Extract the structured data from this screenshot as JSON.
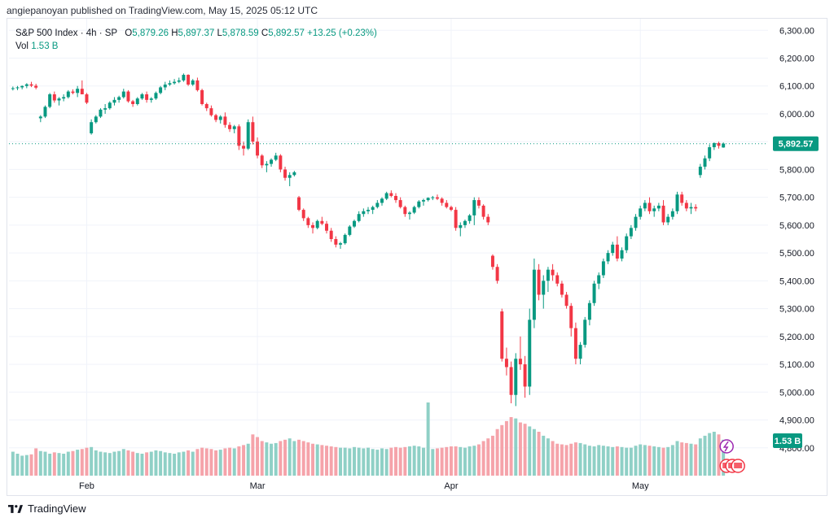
{
  "header": {
    "published_text": "angiepanoyan published on TradingView.com, May 15, 2025 05:12 UTC"
  },
  "legend": {
    "symbol": "S&P 500 Index · 4h · SP",
    "open_label": "O",
    "open": "5,879.26",
    "high_label": "H",
    "high": "5,897.37",
    "low_label": "L",
    "low": "5,878.59",
    "close_label": "C",
    "close": "5,892.57",
    "change": "+13.25 (+0.23%)",
    "vol_label": "Vol",
    "vol": "1.53 B"
  },
  "footer": {
    "brand": "TradingView"
  },
  "colors": {
    "up": "#089981",
    "down": "#f23645",
    "vol_up": "#8fd0c6",
    "vol_down": "#f5a3aa",
    "grid": "#f0f3fa",
    "axis_text": "#131722",
    "last_price_bg": "#089981"
  },
  "chart_data": {
    "type": "candlestick",
    "title": "S&P 500 Index · 4h · SP",
    "ylim": [
      4700,
      6330
    ],
    "yticks": [
      "4,800.00",
      "4,900.00",
      "5,000.00",
      "5,100.00",
      "5,200.00",
      "5,300.00",
      "5,400.00",
      "5,500.00",
      "5,600.00",
      "5,700.00",
      "5,800.00",
      "5,900.00",
      "6,000.00",
      "6,100.00",
      "6,200.00",
      "6,300.00"
    ],
    "ytick_values": [
      4800,
      4900,
      5000,
      5100,
      5200,
      5300,
      5400,
      5500,
      5600,
      5700,
      5800,
      5900,
      6000,
      6100,
      6200,
      6300
    ],
    "xticks": [
      {
        "label": "Feb",
        "index": 16
      },
      {
        "label": "Mar",
        "index": 53
      },
      {
        "label": "Apr",
        "index": 95
      },
      {
        "label": "May",
        "index": 136
      }
    ],
    "last_price": 5892.57,
    "last_price_label": "5,892.57",
    "last_volume_label": "1.53 B",
    "volume_max": 1100,
    "candles": [
      [
        6090,
        6098,
        6084,
        6092,
        360
      ],
      [
        6092,
        6100,
        6085,
        6095,
        330
      ],
      [
        6095,
        6102,
        6088,
        6100,
        300
      ],
      [
        6100,
        6110,
        6092,
        6106,
        310
      ],
      [
        6106,
        6115,
        6096,
        6101,
        320
      ],
      [
        6101,
        6108,
        6088,
        6094,
        410
      ],
      [
        5984,
        5995,
        5970,
        5990,
        370
      ],
      [
        5990,
        6030,
        5985,
        6025,
        360
      ],
      [
        6025,
        6075,
        6020,
        6070,
        330
      ],
      [
        6070,
        6080,
        6040,
        6048,
        350
      ],
      [
        6048,
        6060,
        6030,
        6055,
        340
      ],
      [
        6055,
        6070,
        6045,
        6060,
        330
      ],
      [
        6060,
        6085,
        6055,
        6080,
        360
      ],
      [
        6080,
        6088,
        6070,
        6075,
        370
      ],
      [
        6075,
        6100,
        6060,
        6090,
        390
      ],
      [
        6090,
        6120,
        6080,
        6070,
        400
      ],
      [
        6070,
        6075,
        6035,
        6040,
        420
      ],
      [
        5930,
        5980,
        5925,
        5970,
        430
      ],
      [
        5970,
        5995,
        5965,
        5990,
        380
      ],
      [
        5990,
        6020,
        5985,
        6015,
        360
      ],
      [
        6015,
        6035,
        6000,
        6020,
        350
      ],
      [
        6020,
        6045,
        6015,
        6040,
        340
      ],
      [
        6040,
        6060,
        6030,
        6050,
        360
      ],
      [
        6050,
        6065,
        6040,
        6060,
        370
      ],
      [
        6060,
        6090,
        6055,
        6080,
        400
      ],
      [
        6080,
        6085,
        6040,
        6045,
        380
      ],
      [
        6045,
        6050,
        6025,
        6035,
        360
      ],
      [
        6035,
        6060,
        6030,
        6055,
        340
      ],
      [
        6055,
        6075,
        6050,
        6070,
        330
      ],
      [
        6070,
        6080,
        6040,
        6050,
        350
      ],
      [
        6050,
        6060,
        6040,
        6055,
        360
      ],
      [
        6055,
        6080,
        6050,
        6075,
        380
      ],
      [
        6075,
        6100,
        6070,
        6095,
        370
      ],
      [
        6095,
        6115,
        6085,
        6105,
        350
      ],
      [
        6105,
        6120,
        6100,
        6110,
        340
      ],
      [
        6110,
        6125,
        6105,
        6115,
        330
      ],
      [
        6115,
        6130,
        6110,
        6120,
        350
      ],
      [
        6120,
        6145,
        6115,
        6140,
        360
      ],
      [
        6140,
        6142,
        6100,
        6105,
        380
      ],
      [
        6105,
        6125,
        6100,
        6120,
        360
      ],
      [
        6120,
        6130,
        6080,
        6085,
        400
      ],
      [
        6085,
        6090,
        6030,
        6035,
        420
      ],
      [
        6035,
        6040,
        6010,
        6020,
        410
      ],
      [
        6020,
        6030,
        5990,
        5995,
        400
      ],
      [
        5995,
        6000,
        5970,
        5978,
        380
      ],
      [
        5978,
        5995,
        5965,
        5990,
        390
      ],
      [
        5990,
        6005,
        5950,
        5960,
        410
      ],
      [
        5960,
        5970,
        5935,
        5945,
        420
      ],
      [
        5945,
        5960,
        5930,
        5955,
        410
      ],
      [
        5955,
        5962,
        5870,
        5885,
        440
      ],
      [
        5885,
        5900,
        5850,
        5875,
        460
      ],
      [
        5875,
        5980,
        5870,
        5970,
        480
      ],
      [
        5970,
        5990,
        5890,
        5900,
        620
      ],
      [
        5900,
        5915,
        5840,
        5850,
        580
      ],
      [
        5850,
        5855,
        5805,
        5815,
        520
      ],
      [
        5815,
        5830,
        5790,
        5820,
        500
      ],
      [
        5820,
        5840,
        5810,
        5835,
        480
      ],
      [
        5835,
        5860,
        5830,
        5850,
        490
      ],
      [
        5850,
        5855,
        5790,
        5800,
        520
      ],
      [
        5800,
        5810,
        5760,
        5770,
        540
      ],
      [
        5770,
        5790,
        5740,
        5780,
        560
      ],
      [
        5780,
        5795,
        5775,
        5790,
        520
      ],
      [
        5700,
        5705,
        5650,
        5655,
        540
      ],
      [
        5655,
        5660,
        5615,
        5625,
        520
      ],
      [
        5625,
        5630,
        5590,
        5600,
        500
      ],
      [
        5600,
        5610,
        5570,
        5590,
        480
      ],
      [
        5590,
        5620,
        5585,
        5615,
        470
      ],
      [
        5615,
        5630,
        5600,
        5605,
        460
      ],
      [
        5605,
        5615,
        5570,
        5580,
        450
      ],
      [
        5580,
        5590,
        5540,
        5550,
        440
      ],
      [
        5550,
        5560,
        5520,
        5530,
        430
      ],
      [
        5530,
        5540,
        5515,
        5535,
        420
      ],
      [
        5535,
        5570,
        5530,
        5565,
        420
      ],
      [
        5565,
        5600,
        5560,
        5595,
        410
      ],
      [
        5595,
        5620,
        5590,
        5615,
        430
      ],
      [
        5615,
        5650,
        5610,
        5640,
        420
      ],
      [
        5640,
        5660,
        5630,
        5650,
        410
      ],
      [
        5650,
        5665,
        5640,
        5655,
        420
      ],
      [
        5655,
        5670,
        5640,
        5665,
        400
      ],
      [
        5665,
        5690,
        5660,
        5680,
        390
      ],
      [
        5680,
        5700,
        5670,
        5695,
        410
      ],
      [
        5695,
        5720,
        5690,
        5715,
        400
      ],
      [
        5715,
        5725,
        5700,
        5705,
        420
      ],
      [
        5705,
        5715,
        5680,
        5690,
        430
      ],
      [
        5690,
        5700,
        5660,
        5665,
        420
      ],
      [
        5665,
        5670,
        5630,
        5640,
        430
      ],
      [
        5640,
        5650,
        5620,
        5645,
        440
      ],
      [
        5645,
        5670,
        5640,
        5665,
        450
      ],
      [
        5665,
        5690,
        5660,
        5685,
        440
      ],
      [
        5685,
        5695,
        5670,
        5690,
        420
      ],
      [
        5690,
        5700,
        5685,
        5698,
        1100
      ],
      [
        5698,
        5705,
        5690,
        5700,
        400
      ],
      [
        5700,
        5710,
        5690,
        5695,
        410
      ],
      [
        5695,
        5700,
        5670,
        5680,
        420
      ],
      [
        5680,
        5690,
        5660,
        5665,
        430
      ],
      [
        5665,
        5670,
        5650,
        5655,
        440
      ],
      [
        5655,
        5665,
        5580,
        5590,
        440
      ],
      [
        5590,
        5610,
        5560,
        5600,
        430
      ],
      [
        5600,
        5620,
        5590,
        5615,
        420
      ],
      [
        5615,
        5640,
        5605,
        5635,
        440
      ],
      [
        5635,
        5700,
        5600,
        5690,
        450
      ],
      [
        5690,
        5700,
        5660,
        5670,
        470
      ],
      [
        5670,
        5675,
        5620,
        5630,
        520
      ],
      [
        5630,
        5640,
        5600,
        5610,
        560
      ],
      [
        5490,
        5495,
        5440,
        5450,
        600
      ],
      [
        5450,
        5460,
        5390,
        5400,
        700
      ],
      [
        5290,
        5300,
        5110,
        5120,
        760
      ],
      [
        5120,
        5160,
        5060,
        5090,
        820
      ],
      [
        5090,
        5110,
        4960,
        4990,
        880
      ],
      [
        4990,
        5140,
        4950,
        5120,
        860
      ],
      [
        5120,
        5200,
        5080,
        5100,
        800
      ],
      [
        5100,
        5130,
        4980,
        5020,
        780
      ],
      [
        5020,
        5300,
        4990,
        5260,
        740
      ],
      [
        5260,
        5480,
        5230,
        5440,
        700
      ],
      [
        5440,
        5460,
        5330,
        5350,
        660
      ],
      [
        5350,
        5420,
        5300,
        5400,
        600
      ],
      [
        5400,
        5450,
        5360,
        5440,
        560
      ],
      [
        5440,
        5460,
        5400,
        5420,
        520
      ],
      [
        5420,
        5430,
        5380,
        5390,
        480
      ],
      [
        5390,
        5400,
        5340,
        5350,
        470
      ],
      [
        5350,
        5360,
        5300,
        5310,
        460
      ],
      [
        5310,
        5320,
        5200,
        5230,
        480
      ],
      [
        5230,
        5250,
        5100,
        5120,
        500
      ],
      [
        5120,
        5180,
        5100,
        5170,
        490
      ],
      [
        5170,
        5270,
        5160,
        5260,
        470
      ],
      [
        5260,
        5330,
        5240,
        5320,
        450
      ],
      [
        5320,
        5400,
        5310,
        5390,
        440
      ],
      [
        5390,
        5430,
        5370,
        5420,
        460
      ],
      [
        5420,
        5480,
        5410,
        5470,
        450
      ],
      [
        5470,
        5510,
        5460,
        5500,
        440
      ],
      [
        5500,
        5540,
        5490,
        5530,
        430
      ],
      [
        5530,
        5560,
        5470,
        5480,
        440
      ],
      [
        5480,
        5520,
        5470,
        5510,
        430
      ],
      [
        5510,
        5570,
        5500,
        5560,
        420
      ],
      [
        5560,
        5600,
        5550,
        5590,
        420
      ],
      [
        5590,
        5640,
        5580,
        5630,
        450
      ],
      [
        5630,
        5670,
        5620,
        5660,
        470
      ],
      [
        5660,
        5690,
        5650,
        5680,
        460
      ],
      [
        5680,
        5700,
        5640,
        5650,
        450
      ],
      [
        5650,
        5670,
        5630,
        5660,
        440
      ],
      [
        5660,
        5680,
        5650,
        5670,
        430
      ],
      [
        5670,
        5690,
        5600,
        5610,
        420
      ],
      [
        5610,
        5640,
        5600,
        5630,
        430
      ],
      [
        5630,
        5660,
        5620,
        5650,
        460
      ],
      [
        5650,
        5720,
        5640,
        5710,
        520
      ],
      [
        5710,
        5720,
        5670,
        5680,
        500
      ],
      [
        5680,
        5690,
        5650,
        5660,
        490
      ],
      [
        5660,
        5680,
        5640,
        5665,
        480
      ],
      [
        5665,
        5675,
        5650,
        5660,
        470
      ],
      [
        5780,
        5820,
        5770,
        5810,
        560
      ],
      [
        5810,
        5850,
        5800,
        5840,
        600
      ],
      [
        5840,
        5890,
        5830,
        5880,
        640
      ],
      [
        5880,
        5897,
        5870,
        5895,
        660
      ],
      [
        5895,
        5900,
        5875,
        5885,
        620
      ],
      [
        5879,
        5897,
        5878,
        5893,
        540
      ]
    ]
  }
}
